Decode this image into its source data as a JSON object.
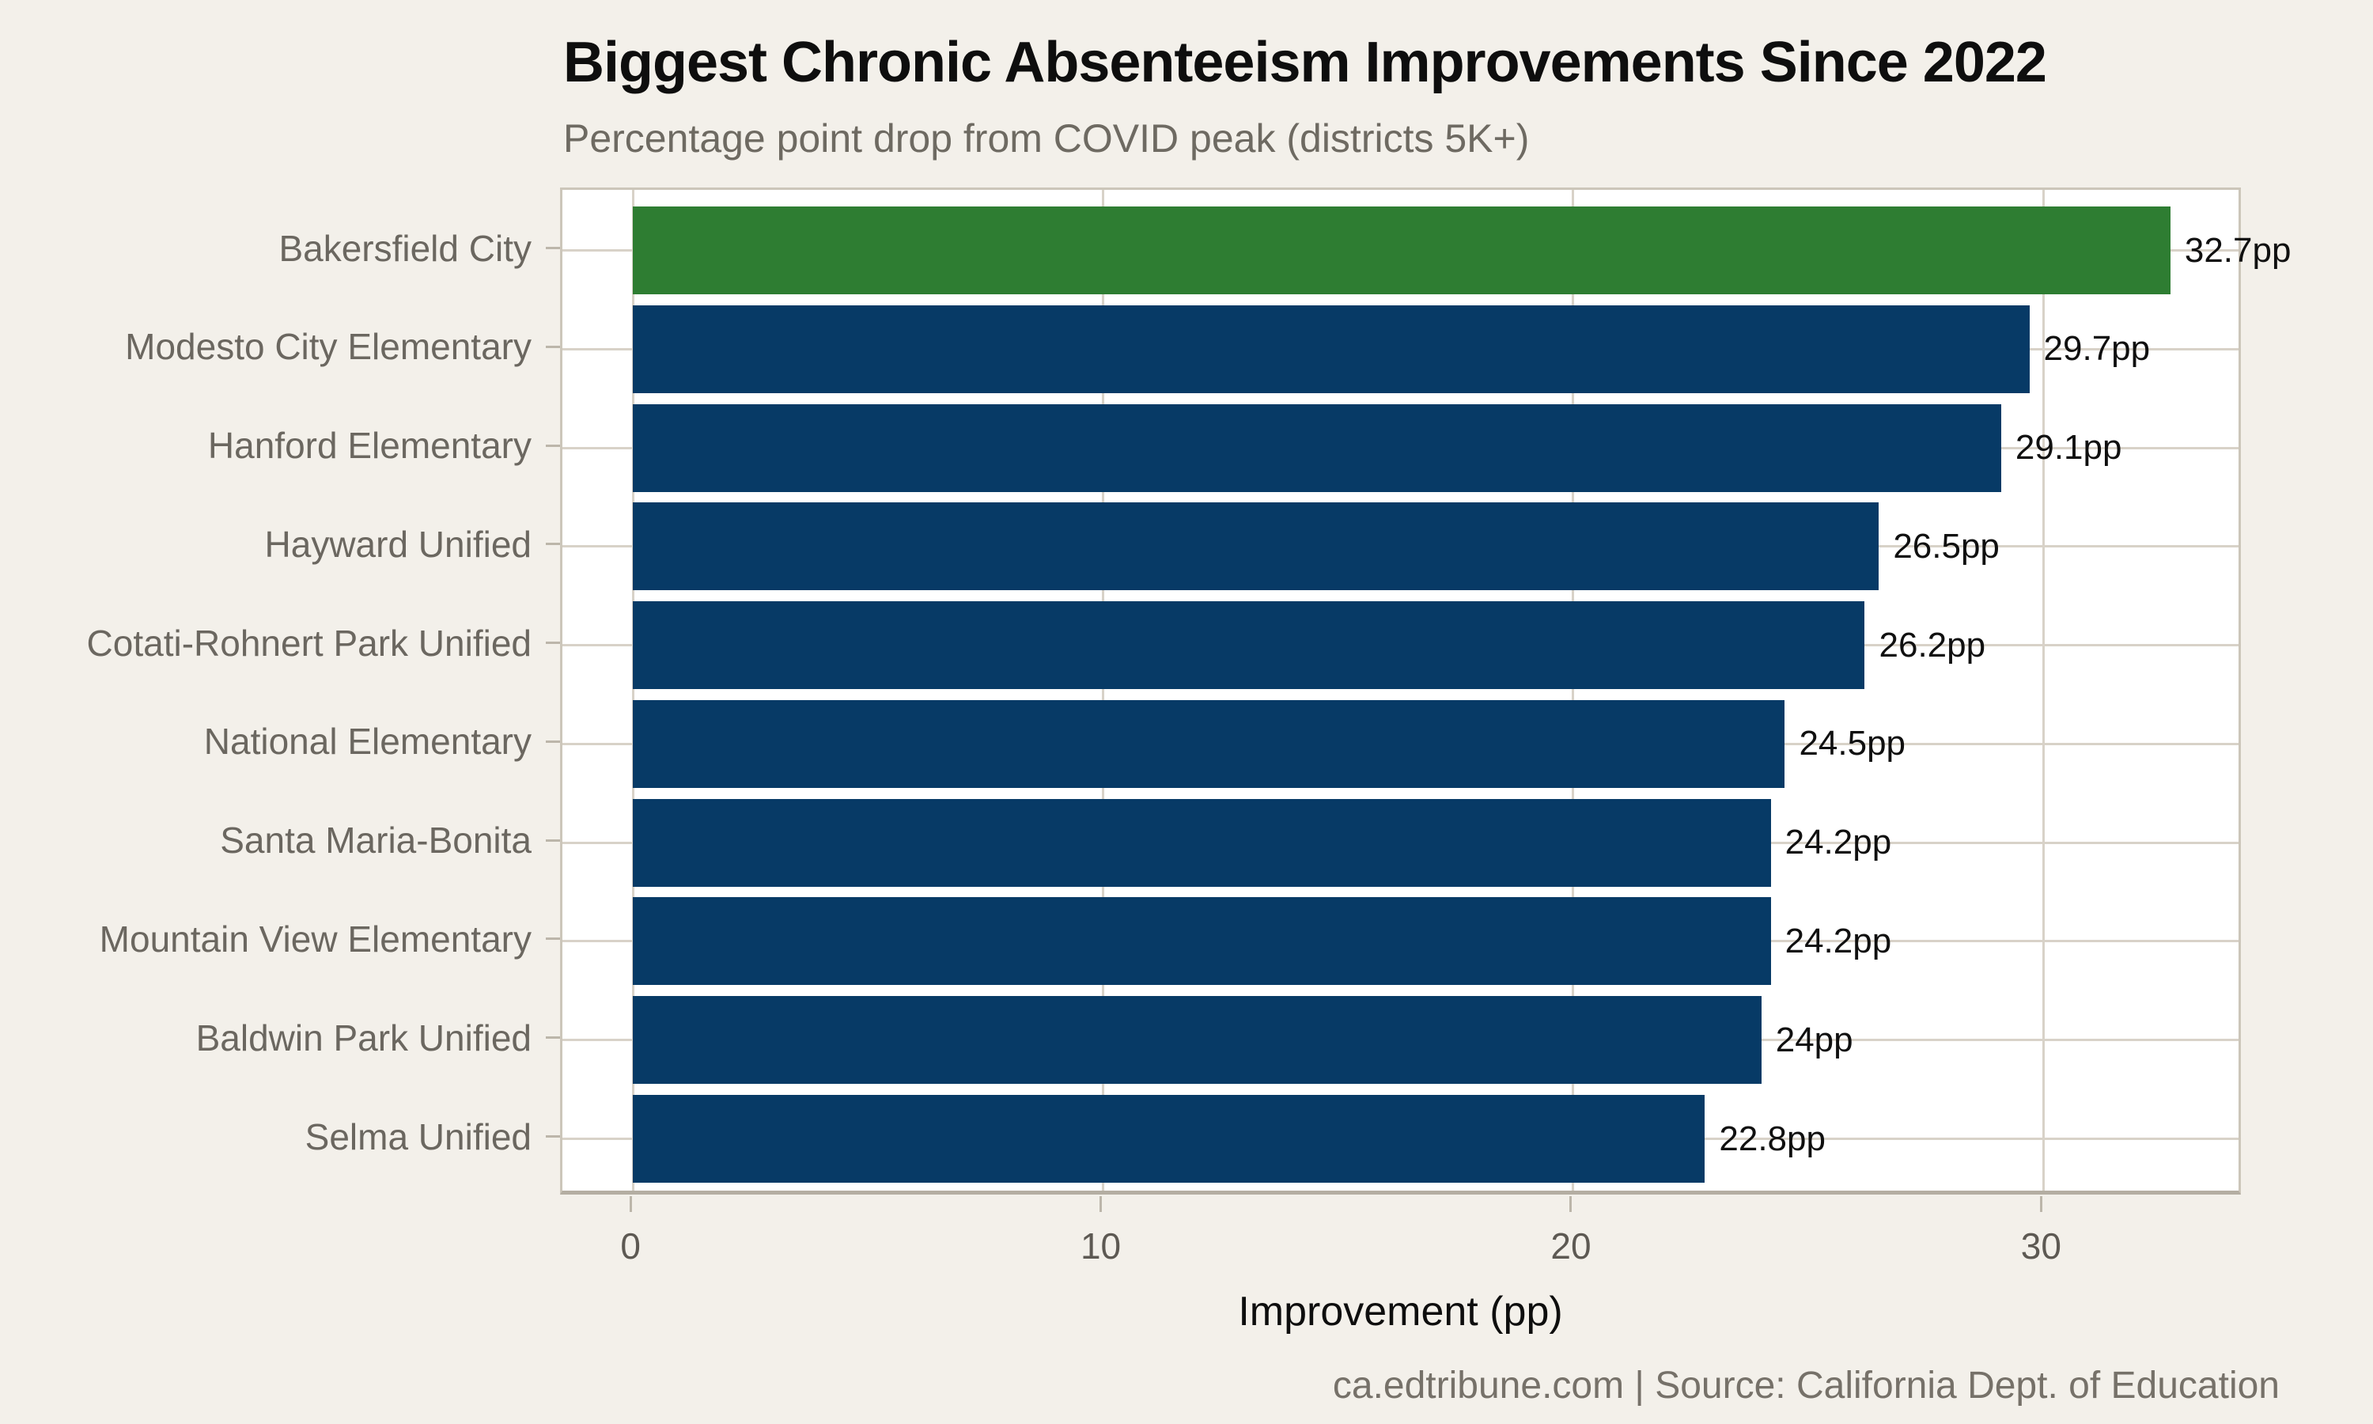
{
  "title": "Biggest Chronic Absenteeism Improvements Since 2022",
  "subtitle": "Percentage point drop from COVID peak (districts 5K+)",
  "footer": "ca.edtribune.com | Source: California Dept. of Education",
  "chart_data": {
    "type": "bar",
    "orientation": "horizontal",
    "title": "Biggest Chronic Absenteeism Improvements Since 2022",
    "subtitle": "Percentage point drop from COVID peak (districts 5K+)",
    "categories": [
      "Bakersfield City",
      "Modesto City Elementary",
      "Hanford Elementary",
      "Hayward Unified",
      "Cotati-Rohnert Park Unified",
      "National Elementary",
      "Santa Maria-Bonita",
      "Mountain View Elementary",
      "Baldwin Park Unified",
      "Selma Unified"
    ],
    "values": [
      32.7,
      29.7,
      29.1,
      26.5,
      26.2,
      24.5,
      24.2,
      24.2,
      24,
      22.8
    ],
    "value_labels": [
      "32.7pp",
      "29.7pp",
      "29.1pp",
      "26.5pp",
      "26.2pp",
      "24.5pp",
      "24.2pp",
      "24.2pp",
      "24pp",
      "22.8pp"
    ],
    "xlabel": "Improvement (pp)",
    "ylabel": "",
    "x_ticks": [
      0,
      10,
      20,
      30
    ],
    "xlim": [
      -1.5,
      34.25
    ],
    "grid": true,
    "legend": "none",
    "highlight_index": 0,
    "colors": {
      "highlight_bar": "#2e7d32",
      "bar": "#073a66",
      "figure_background": "#f3f0ea",
      "panel_background": "#ffffff",
      "gridline": "#d8d2c8",
      "spine": "#b4aea2",
      "value_label_text": "#101010",
      "category_text": "#6b6760",
      "tick_text": "#5d5953",
      "subtitle_text": "#6e6a62",
      "footer_text": "#767169"
    }
  }
}
